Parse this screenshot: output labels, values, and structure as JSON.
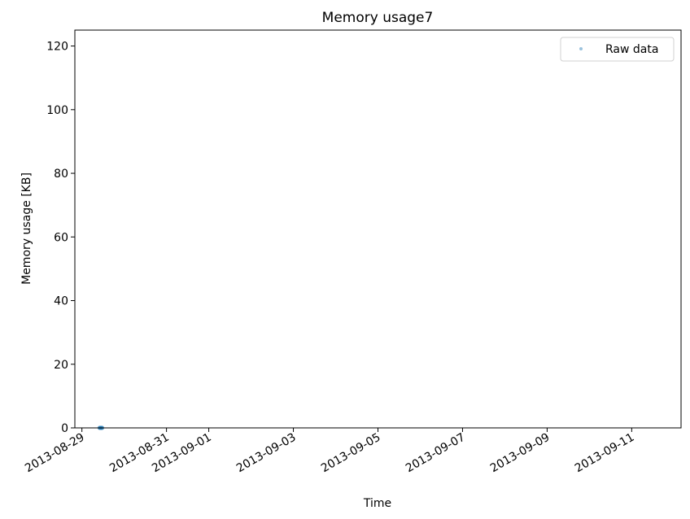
{
  "chart_data": {
    "type": "scatter",
    "title": "Memory usage7",
    "xlabel": "Time",
    "ylabel": "Memory usage [KB]",
    "x_axis_type": "date",
    "xlim": [
      "2013-08-28T20:00",
      "2013-09-12T04:00"
    ],
    "ylim": [
      0,
      125
    ],
    "x_ticks": [
      "2013-08-29",
      "2013-08-31",
      "2013-09-01",
      "2013-09-03",
      "2013-09-05",
      "2013-09-07",
      "2013-09-09",
      "2013-09-11"
    ],
    "y_ticks": [
      0,
      20,
      40,
      60,
      80,
      100,
      120
    ],
    "grid": false,
    "legend": {
      "position": "top-right",
      "entries": [
        "Raw data"
      ]
    },
    "series": [
      {
        "name": "Raw data",
        "color": "#1f77b4",
        "marker": "dot",
        "x": [
          "2013-08-29T10:00",
          "2013-08-29T10:30",
          "2013-08-29T11:00",
          "2013-08-29T11:30"
        ],
        "y": [
          0,
          0,
          0,
          0
        ]
      }
    ]
  }
}
